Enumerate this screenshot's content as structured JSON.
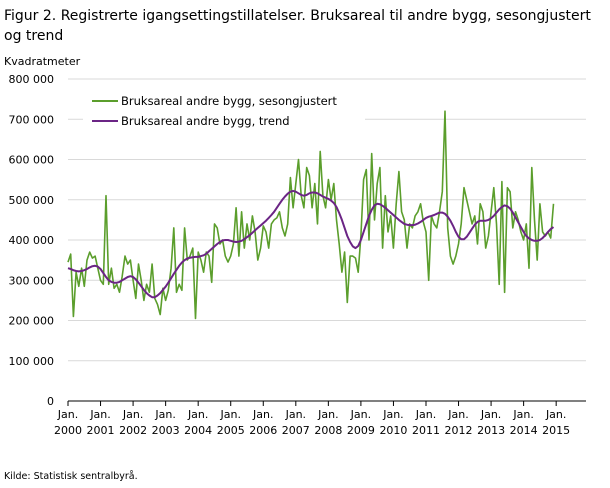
{
  "figure": {
    "title": "Figur 2. Registrerte igangsettingstillatelser. Bruksareal til andre bygg, sesongjustert og trend",
    "source": "Kilde:  Statistisk sentralbyrå."
  },
  "colors": {
    "sesongjustert": "#5b9e2c",
    "trend": "#6b2585",
    "axis": "#000000",
    "grid": "#d9d9d9"
  },
  "chart_data": {
    "type": "line",
    "title": "Figur 2. Registrerte igangsettingstillatelser. Bruksareal til andre bygg, sesongjustert og trend",
    "ylabel": "Kvadratmeter",
    "xlabel": "",
    "ylim": [
      0,
      800000
    ],
    "yticks": [
      0,
      100000,
      200000,
      300000,
      400000,
      500000,
      600000,
      700000,
      800000
    ],
    "ytick_labels": [
      "0",
      "100 000",
      "200 000",
      "300 000",
      "400 000",
      "500 000",
      "600 000",
      "700 000",
      "800 000"
    ],
    "xtick_labels": [
      {
        "month": "Jan.",
        "year": "2000"
      },
      {
        "month": "Jan.",
        "year": "2001"
      },
      {
        "month": "Jan.",
        "year": "2002"
      },
      {
        "month": "Jan.",
        "year": "2003"
      },
      {
        "month": "Jan.",
        "year": "2004"
      },
      {
        "month": "Jan.",
        "year": "2005"
      },
      {
        "month": "Jan.",
        "year": "2006"
      },
      {
        "month": "Jan.",
        "year": "2007"
      },
      {
        "month": "Jan.",
        "year": "2008"
      },
      {
        "month": "Jan.",
        "year": "2009"
      },
      {
        "month": "Jan.",
        "year": "2010"
      },
      {
        "month": "Jan.",
        "year": "2011"
      },
      {
        "month": "Jan.",
        "year": "2012"
      },
      {
        "month": "Jan.",
        "year": "2013"
      },
      {
        "month": "Jan.",
        "year": "2014"
      },
      {
        "month": "Jan.",
        "year": "2015"
      }
    ],
    "x_start": "2000-01",
    "frequency": "monthly",
    "grid": true,
    "legend": "top-left",
    "series": [
      {
        "name": "Bruksareal andre bygg, sesongjustert",
        "values": [
          345000,
          365000,
          210000,
          320000,
          285000,
          330000,
          285000,
          350000,
          370000,
          355000,
          360000,
          330000,
          300000,
          290000,
          510000,
          290000,
          330000,
          280000,
          290000,
          270000,
          310000,
          360000,
          340000,
          350000,
          300000,
          255000,
          340000,
          300000,
          250000,
          290000,
          270000,
          340000,
          255000,
          240000,
          215000,
          280000,
          250000,
          275000,
          330000,
          430000,
          270000,
          290000,
          275000,
          430000,
          350000,
          360000,
          380000,
          205000,
          370000,
          350000,
          320000,
          370000,
          360000,
          295000,
          440000,
          430000,
          390000,
          400000,
          360000,
          345000,
          360000,
          390000,
          480000,
          360000,
          470000,
          380000,
          440000,
          400000,
          460000,
          420000,
          350000,
          380000,
          435000,
          420000,
          380000,
          440000,
          450000,
          455000,
          470000,
          430000,
          410000,
          440000,
          555000,
          480000,
          540000,
          600000,
          510000,
          480000,
          580000,
          560000,
          480000,
          540000,
          440000,
          620000,
          510000,
          480000,
          550000,
          500000,
          540000,
          450000,
          390000,
          320000,
          370000,
          245000,
          360000,
          360000,
          355000,
          320000,
          410000,
          550000,
          575000,
          400000,
          615000,
          450000,
          540000,
          580000,
          380000,
          510000,
          420000,
          460000,
          380000,
          490000,
          570000,
          470000,
          450000,
          380000,
          440000,
          430000,
          460000,
          470000,
          490000,
          445000,
          420000,
          300000,
          460000,
          440000,
          430000,
          470000,
          520000,
          720000,
          430000,
          360000,
          340000,
          360000,
          390000,
          440000,
          530000,
          500000,
          470000,
          440000,
          460000,
          390000,
          490000,
          470000,
          380000,
          410000,
          470000,
          530000,
          440000,
          290000,
          545000,
          270000,
          530000,
          520000,
          430000,
          470000,
          450000,
          420000,
          400000,
          440000,
          330000,
          580000,
          450000,
          350000,
          490000,
          420000,
          410000,
          420000,
          405000,
          490000
        ]
      },
      {
        "name": "Bruksareal andre bygg, trend",
        "values": [
          330000,
          328000,
          325000,
          323000,
          322000,
          323000,
          325000,
          328000,
          332000,
          335000,
          336000,
          334000,
          328000,
          318000,
          308000,
          300000,
          296000,
          294000,
          294000,
          296000,
          300000,
          304000,
          308000,
          310000,
          308000,
          302000,
          294000,
          285000,
          276000,
          268000,
          262000,
          258000,
          258000,
          262000,
          268000,
          276000,
          284000,
          294000,
          305000,
          316000,
          326000,
          336000,
          344000,
          350000,
          354000,
          356000,
          357000,
          358000,
          358000,
          360000,
          362000,
          366000,
          372000,
          378000,
          384000,
          390000,
          395000,
          399000,
          400000,
          400000,
          398000,
          396000,
          395000,
          396000,
          398000,
          402000,
          407000,
          412000,
          418000,
          424000,
          430000,
          436000,
          442000,
          448000,
          455000,
          462000,
          470000,
          480000,
          490000,
          500000,
          508000,
          515000,
          520000,
          522000,
          520000,
          516000,
          512000,
          510000,
          512000,
          516000,
          518000,
          518000,
          516000,
          512000,
          508000,
          505000,
          502000,
          498000,
          492000,
          482000,
          467000,
          450000,
          430000,
          410000,
          395000,
          384000,
          380000,
          385000,
          400000,
          420000,
          440000,
          460000,
          475000,
          486000,
          490000,
          489000,
          485000,
          480000,
          474000,
          468000,
          462000,
          456000,
          450000,
          445000,
          440000,
          438000,
          437000,
          437000,
          438000,
          441000,
          445000,
          450000,
          455000,
          458000,
          460000,
          462000,
          465000,
          468000,
          468000,
          465000,
          458000,
          448000,
          435000,
          420000,
          408000,
          402000,
          402000,
          408000,
          418000,
          428000,
          438000,
          445000,
          448000,
          448000,
          448000,
          450000,
          454000,
          460000,
          468000,
          476000,
          482000,
          486000,
          484000,
          478000,
          468000,
          456000,
          444000,
          432000,
          420000,
          410000,
          404000,
          400000,
          398000,
          398000,
          400000,
          405000,
          412000,
          420000,
          427000,
          432000
        ]
      }
    ]
  }
}
